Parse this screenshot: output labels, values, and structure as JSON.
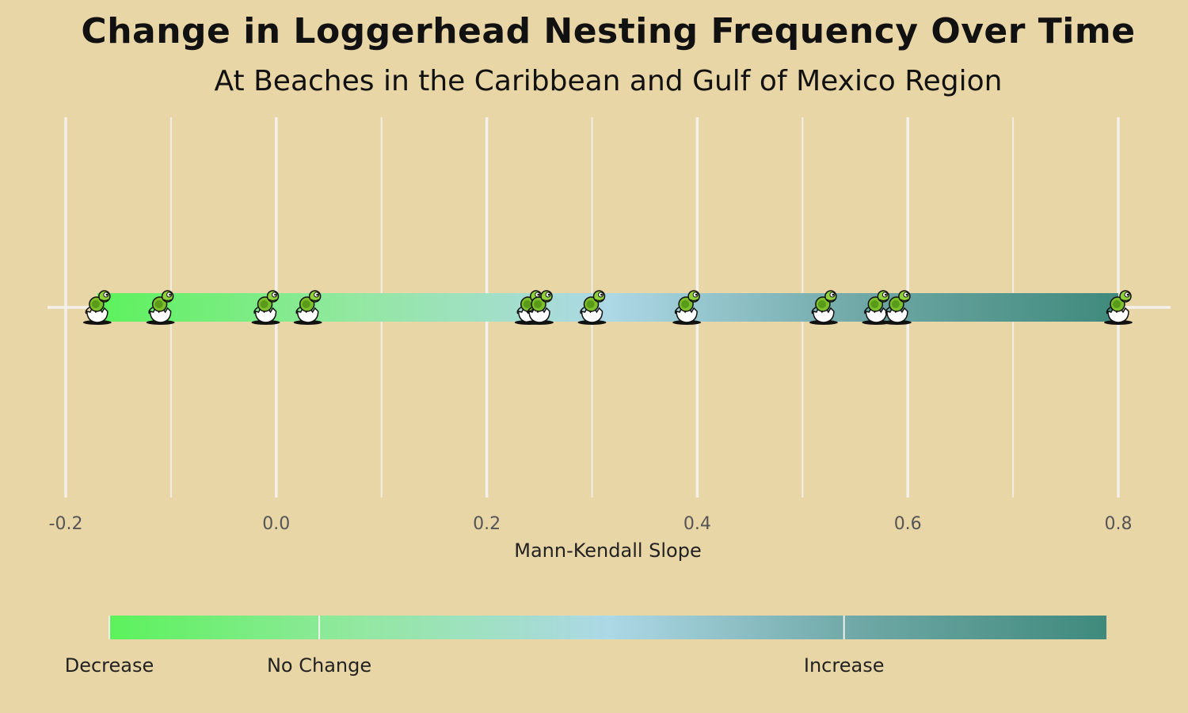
{
  "chart_data": {
    "type": "scatter",
    "title": "Change in Loggerhead Nesting Frequency Over Time",
    "subtitle": "At Beaches in the Caribbean and Gulf of Mexico Region",
    "xlabel": "Mann-Kendall Slope",
    "ylabel": "",
    "xlim": [
      -0.2,
      0.8
    ],
    "x_ticks": [
      "-0.2",
      "0.0",
      "0.2",
      "0.4",
      "0.6",
      "0.8"
    ],
    "x_tick_values": [
      -0.2,
      0.0,
      0.2,
      0.4,
      0.6,
      0.8
    ],
    "grid": true,
    "marker": "hatching-turtle-icon",
    "points": [
      -0.17,
      -0.11,
      -0.01,
      0.03,
      0.24,
      0.25,
      0.3,
      0.39,
      0.52,
      0.57,
      0.59,
      0.8
    ],
    "gradient_colors": [
      "#5cf25c",
      "#92e8a0",
      "#add8e6",
      "#6fa8a6",
      "#3f8a7c"
    ],
    "legend": {
      "position": "bottom",
      "labels": [
        "Decrease",
        "No Change",
        "Increase"
      ],
      "label_values": [
        -0.2,
        0.0,
        0.5
      ]
    }
  }
}
